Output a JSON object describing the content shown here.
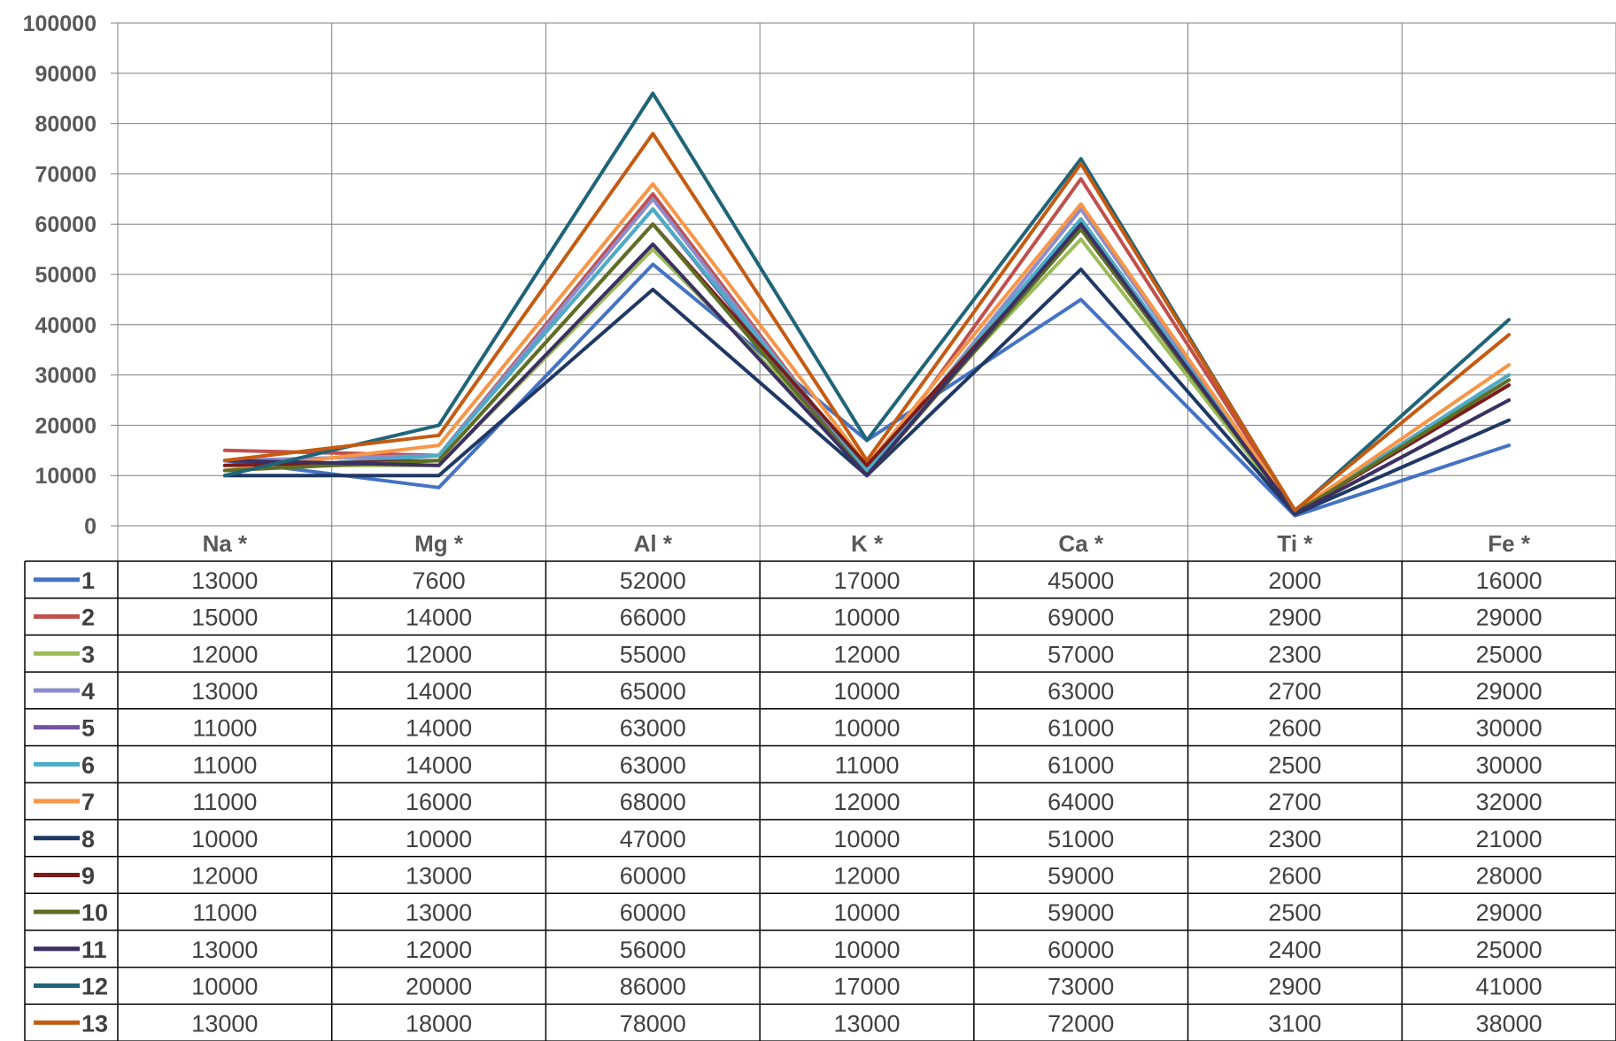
{
  "chart_data": {
    "type": "line",
    "title": "",
    "xlabel": "",
    "ylabel": "",
    "ylim": [
      0,
      100000
    ],
    "yticks": [
      0,
      10000,
      20000,
      30000,
      40000,
      50000,
      60000,
      70000,
      80000,
      90000,
      100000
    ],
    "grid": true,
    "legend": "data-table",
    "categories": [
      "Na *",
      "Mg *",
      "Al *",
      "K *",
      "Ca *",
      "Ti *",
      "Fe *"
    ],
    "series": [
      {
        "name": "1",
        "color": "#4472c4",
        "values": [
          13000,
          7600,
          52000,
          17000,
          45000,
          2000,
          16000
        ]
      },
      {
        "name": "2",
        "color": "#c0504d",
        "values": [
          15000,
          14000,
          66000,
          10000,
          69000,
          2900,
          29000
        ]
      },
      {
        "name": "3",
        "color": "#9bbb59",
        "values": [
          12000,
          12000,
          55000,
          12000,
          57000,
          2300,
          25000
        ]
      },
      {
        "name": "4",
        "color": "#8e8ccc",
        "values": [
          13000,
          14000,
          65000,
          10000,
          63000,
          2700,
          29000
        ]
      },
      {
        "name": "5",
        "color": "#7254a2",
        "values": [
          11000,
          14000,
          63000,
          10000,
          61000,
          2600,
          30000
        ]
      },
      {
        "name": "6",
        "color": "#4bacc6",
        "values": [
          11000,
          14000,
          63000,
          11000,
          61000,
          2500,
          30000
        ]
      },
      {
        "name": "7",
        "color": "#f79646",
        "values": [
          11000,
          16000,
          68000,
          12000,
          64000,
          2700,
          32000
        ]
      },
      {
        "name": "8",
        "color": "#1f3864",
        "values": [
          10000,
          10000,
          47000,
          10000,
          51000,
          2300,
          21000
        ]
      },
      {
        "name": "9",
        "color": "#7b1c1c",
        "values": [
          12000,
          13000,
          60000,
          12000,
          59000,
          2600,
          28000
        ]
      },
      {
        "name": "10",
        "color": "#5e6f24",
        "values": [
          11000,
          13000,
          60000,
          10000,
          59000,
          2500,
          29000
        ]
      },
      {
        "name": "11",
        "color": "#3b2f63",
        "values": [
          13000,
          12000,
          56000,
          10000,
          60000,
          2400,
          25000
        ]
      },
      {
        "name": "12",
        "color": "#1f6478",
        "values": [
          10000,
          20000,
          86000,
          17000,
          73000,
          2900,
          41000
        ]
      },
      {
        "name": "13",
        "color": "#c55a11",
        "values": [
          13000,
          18000,
          78000,
          13000,
          72000,
          3100,
          38000
        ]
      }
    ]
  }
}
